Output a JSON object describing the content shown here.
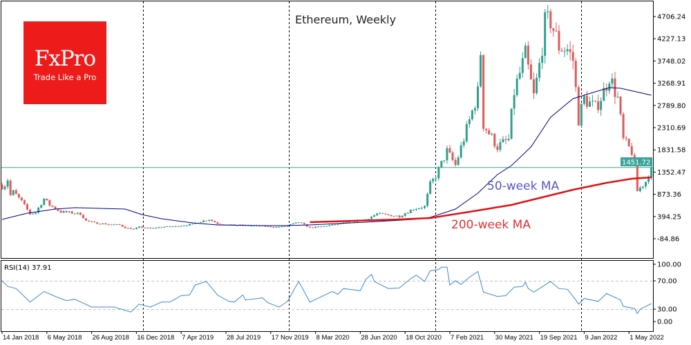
{
  "chart_data": {
    "type": "candlestick",
    "title": "Ethereum, Weekly",
    "frequency": "weekly",
    "price_axis": {
      "ticks": [
        "4706.24",
        "4227.13",
        "3748.02",
        "3268.91",
        "2789.80",
        "2310.69",
        "1831.58",
        "1352.47",
        "873.36",
        "394.25",
        "-84.86"
      ],
      "range": [
        -84.86,
        4706.24
      ]
    },
    "current_price": "1451.72",
    "date_ticks": [
      "14 Jan 2018",
      "6 May 2018",
      "26 Aug 2018",
      "16 Dec 2018",
      "7 Apr 2019",
      "28 Jul 2019",
      "17 Nov 2019",
      "8 Mar 2020",
      "28 Jun 2020",
      "18 Oct 2020",
      "7 Feb 2021",
      "30 May 2021",
      "19 Sep 2021",
      "9 Jan 2022",
      "1 May 2022"
    ],
    "date_tick_dates": [
      "2018-01-14",
      "2018-05-06",
      "2018-08-26",
      "2018-12-16",
      "2019-04-07",
      "2019-07-28",
      "2019-11-17",
      "2020-03-08",
      "2020-06-28",
      "2020-10-18",
      "2021-02-07",
      "2021-05-30",
      "2021-09-19",
      "2022-01-09",
      "2022-05-01"
    ],
    "separator_dates": [
      "2019-01-01",
      "2020-01-01",
      "2021-01-01",
      "2022-01-01"
    ],
    "close": [
      [
        "2018-01-14",
        1046
      ],
      [
        "2018-01-21",
        1076
      ],
      [
        "2018-01-28",
        1195
      ],
      [
        "2018-02-04",
        853
      ],
      [
        "2018-02-11",
        927
      ],
      [
        "2018-03-04",
        718
      ],
      [
        "2018-03-25",
        451
      ],
      [
        "2018-04-08",
        480
      ],
      [
        "2018-04-29",
        778
      ],
      [
        "2018-05-13",
        644
      ],
      [
        "2018-06-10",
        495
      ],
      [
        "2018-07-01",
        480
      ],
      [
        "2018-07-29",
        451
      ],
      [
        "2018-08-12",
        302
      ],
      [
        "2018-09-02",
        257
      ],
      [
        "2018-10-07",
        227
      ],
      [
        "2018-11-04",
        213
      ],
      [
        "2018-11-18",
        153
      ],
      [
        "2018-12-09",
        123
      ],
      [
        "2018-12-23",
        168
      ],
      [
        "2019-01-20",
        138
      ],
      [
        "2019-02-17",
        168
      ],
      [
        "2019-03-24",
        183
      ],
      [
        "2019-05-05",
        227
      ],
      [
        "2019-05-19",
        272
      ],
      [
        "2019-06-16",
        332
      ],
      [
        "2019-07-07",
        242
      ],
      [
        "2019-08-04",
        213
      ],
      [
        "2019-10-06",
        198
      ],
      [
        "2019-12-01",
        168
      ],
      [
        "2019-12-22",
        183
      ],
      [
        "2020-01-26",
        272
      ],
      [
        "2020-02-23",
        153
      ],
      [
        "2020-03-29",
        183
      ],
      [
        "2020-07-12",
        332
      ],
      [
        "2020-08-09",
        451
      ],
      [
        "2020-10-04",
        400
      ],
      [
        "2020-11-08",
        560
      ],
      [
        "2020-12-06",
        610
      ],
      [
        "2020-12-20",
        1090
      ],
      [
        "2021-01-03",
        1270
      ],
      [
        "2021-01-31",
        1800
      ],
      [
        "2021-02-21",
        1500
      ],
      [
        "2021-03-28",
        2460
      ],
      [
        "2021-04-18",
        3060
      ],
      [
        "2021-04-25",
        3950
      ],
      [
        "2021-05-02",
        2385
      ],
      [
        "2021-06-06",
        1900
      ],
      [
        "2021-07-04",
        2050
      ],
      [
        "2021-07-18",
        3085
      ],
      [
        "2021-08-15",
        3870
      ],
      [
        "2021-09-05",
        2980
      ],
      [
        "2021-09-19",
        3650
      ],
      [
        "2021-10-03",
        4540
      ],
      [
        "2021-10-17",
        4620
      ],
      [
        "2021-11-07",
        4070
      ],
      [
        "2021-11-28",
        4000
      ],
      [
        "2021-12-12",
        3770
      ],
      [
        "2021-12-26",
        2490
      ],
      [
        "2022-01-09",
        2935
      ],
      [
        "2022-02-06",
        2730
      ],
      [
        "2022-02-27",
        3085
      ],
      [
        "2022-03-13",
        3430
      ],
      [
        "2022-04-03",
        2935
      ],
      [
        "2022-04-17",
        2040
      ],
      [
        "2022-05-08",
        1790
      ],
      [
        "2022-05-15",
        1540
      ],
      [
        "2022-05-22",
        942
      ],
      [
        "2022-06-12",
        1150
      ],
      [
        "2022-06-26",
        1451.72
      ]
    ],
    "ma50": {
      "label": "50-week MA",
      "color": "#00007f",
      "points": [
        [
          "2018-01-14",
          332
        ],
        [
          "2018-03-18",
          466
        ],
        [
          "2018-05-27",
          555
        ],
        [
          "2018-07-15",
          585
        ],
        [
          "2018-09-16",
          570
        ],
        [
          "2018-11-18",
          555
        ],
        [
          "2018-12-30",
          436
        ],
        [
          "2019-02-17",
          347
        ],
        [
          "2019-05-05",
          257
        ],
        [
          "2019-07-07",
          213
        ],
        [
          "2019-10-20",
          198
        ],
        [
          "2019-12-22",
          198
        ],
        [
          "2020-02-23",
          213
        ],
        [
          "2020-07-12",
          272
        ],
        [
          "2020-11-08",
          332
        ],
        [
          "2020-12-20",
          376
        ],
        [
          "2021-02-21",
          555
        ],
        [
          "2021-04-18",
          897
        ],
        [
          "2021-06-06",
          1299
        ],
        [
          "2021-07-11",
          1492
        ],
        [
          "2021-08-29",
          1894
        ],
        [
          "2021-10-17",
          2534
        ],
        [
          "2021-12-12",
          2935
        ],
        [
          "2022-02-06",
          3085
        ],
        [
          "2022-03-13",
          3174
        ],
        [
          "2022-04-10",
          3160
        ],
        [
          "2022-06-26",
          3010
        ]
      ]
    },
    "ma200": {
      "label": "200-week MA",
      "color": "#e01010",
      "points": [
        [
          "2020-02-23",
          272
        ],
        [
          "2020-10-04",
          332
        ],
        [
          "2020-12-20",
          362
        ],
        [
          "2021-03-28",
          495
        ],
        [
          "2021-07-11",
          644
        ],
        [
          "2021-10-17",
          853
        ],
        [
          "2021-12-12",
          972
        ],
        [
          "2022-03-06",
          1120
        ],
        [
          "2022-05-08",
          1210
        ],
        [
          "2022-06-26",
          1240
        ]
      ]
    },
    "rsi": {
      "label": "RSI(14) 37.91",
      "period": 14,
      "last": 37.91,
      "levels": [
        70,
        30
      ],
      "ticks": [
        "100.00",
        "70.00",
        "30.00",
        "0.00"
      ],
      "range": [
        0,
        100
      ],
      "color": "#3d87d0",
      "points": [
        [
          "2018-01-14",
          70
        ],
        [
          "2018-01-28",
          62
        ],
        [
          "2018-02-18",
          59
        ],
        [
          "2018-03-25",
          40
        ],
        [
          "2018-04-29",
          55
        ],
        [
          "2018-05-27",
          48
        ],
        [
          "2018-06-24",
          42
        ],
        [
          "2018-07-15",
          44
        ],
        [
          "2018-08-26",
          33
        ],
        [
          "2018-10-21",
          33
        ],
        [
          "2018-12-02",
          26
        ],
        [
          "2018-12-23",
          37
        ],
        [
          "2019-01-20",
          33
        ],
        [
          "2019-02-17",
          40
        ],
        [
          "2019-03-10",
          40
        ],
        [
          "2019-04-07",
          49
        ],
        [
          "2019-04-28",
          50
        ],
        [
          "2019-05-12",
          64
        ],
        [
          "2019-06-09",
          69
        ],
        [
          "2019-07-07",
          50
        ],
        [
          "2019-08-04",
          41
        ],
        [
          "2019-08-18",
          40
        ],
        [
          "2019-09-08",
          50
        ],
        [
          "2019-09-15",
          43
        ],
        [
          "2019-10-27",
          46
        ],
        [
          "2019-11-10",
          39
        ],
        [
          "2019-12-08",
          33
        ],
        [
          "2019-12-29",
          41
        ],
        [
          "2020-01-26",
          69
        ],
        [
          "2020-02-23",
          40
        ],
        [
          "2020-04-19",
          55
        ],
        [
          "2020-05-03",
          51
        ],
        [
          "2020-05-17",
          59
        ],
        [
          "2020-06-28",
          56
        ],
        [
          "2020-07-12",
          72
        ],
        [
          "2020-07-26",
          79
        ],
        [
          "2020-08-02",
          69
        ],
        [
          "2020-09-06",
          59
        ],
        [
          "2020-10-04",
          60
        ],
        [
          "2020-11-01",
          73
        ],
        [
          "2020-11-15",
          78
        ],
        [
          "2020-12-06",
          69
        ],
        [
          "2020-12-20",
          84
        ],
        [
          "2021-01-10",
          86
        ],
        [
          "2021-01-17",
          89
        ],
        [
          "2021-01-31",
          89
        ],
        [
          "2021-02-07",
          64
        ],
        [
          "2021-02-21",
          70
        ],
        [
          "2021-03-07",
          65
        ],
        [
          "2021-03-28",
          75
        ],
        [
          "2021-04-18",
          83
        ],
        [
          "2021-05-02",
          54
        ],
        [
          "2021-06-06",
          48
        ],
        [
          "2021-06-27",
          49
        ],
        [
          "2021-07-18",
          61
        ],
        [
          "2021-08-08",
          62
        ],
        [
          "2021-08-15",
          68
        ],
        [
          "2021-08-22",
          59
        ],
        [
          "2021-09-05",
          54
        ],
        [
          "2021-10-17",
          69
        ],
        [
          "2021-11-07",
          59
        ],
        [
          "2021-11-28",
          58
        ],
        [
          "2021-12-19",
          43
        ],
        [
          "2021-12-26",
          37
        ],
        [
          "2022-01-09",
          45
        ],
        [
          "2022-02-13",
          41
        ],
        [
          "2022-03-06",
          52
        ],
        [
          "2022-04-10",
          43
        ],
        [
          "2022-04-17",
          34
        ],
        [
          "2022-05-15",
          31
        ],
        [
          "2022-05-22",
          24
        ],
        [
          "2022-05-29",
          30
        ],
        [
          "2022-06-26",
          37.91
        ]
      ]
    },
    "colors": {
      "up": "#2f9f8c",
      "down": "#e05a5a",
      "price_line": "#3aa59a",
      "grid_levels": "#c0c0c0"
    },
    "grid": false
  },
  "logo": {
    "brand": "FxPro",
    "tagline": "Trade Like a Pro",
    "color": "#ee1b1b"
  }
}
